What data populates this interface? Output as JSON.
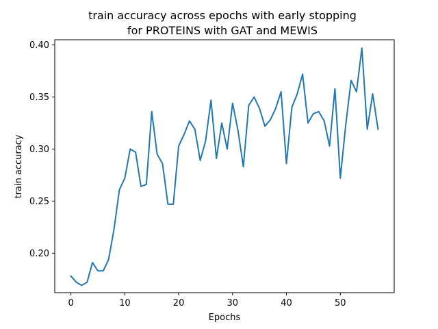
{
  "chart_data": {
    "type": "line",
    "title_lines": [
      "train accuracy across epochs with early stopping",
      "for PROTEINS with GAT and MEWIS"
    ],
    "xlabel": "Epochs",
    "ylabel": "train accuracy",
    "xlim": [
      -3,
      60
    ],
    "ylim": [
      0.162,
      0.405
    ],
    "x_ticks": [
      0,
      10,
      20,
      30,
      40,
      50
    ],
    "y_ticks": [
      0.2,
      0.25,
      0.3,
      0.35,
      0.4
    ],
    "y_tick_labels": [
      "0.20",
      "0.25",
      "0.30",
      "0.35",
      "0.40"
    ],
    "grid": false,
    "line_color": "#1f77b4",
    "series": [
      {
        "x": [
          0,
          1,
          2,
          3,
          4,
          5,
          6,
          7,
          8,
          9,
          10,
          11,
          12,
          13,
          14,
          15,
          16,
          17,
          18,
          19,
          20,
          21,
          22,
          23,
          24,
          25,
          26,
          27,
          28,
          29,
          30,
          31,
          32,
          33,
          34,
          35,
          36,
          37,
          38,
          39,
          40,
          41,
          42,
          43,
          44,
          45,
          46,
          47,
          48,
          49,
          50,
          51,
          52,
          53,
          54,
          55,
          56,
          57
        ],
        "values": [
          0.178,
          0.172,
          0.169,
          0.172,
          0.191,
          0.183,
          0.183,
          0.194,
          0.223,
          0.261,
          0.272,
          0.3,
          0.297,
          0.264,
          0.266,
          0.336,
          0.295,
          0.286,
          0.247,
          0.247,
          0.303,
          0.314,
          0.327,
          0.319,
          0.289,
          0.308,
          0.347,
          0.291,
          0.325,
          0.3,
          0.344,
          0.318,
          0.283,
          0.342,
          0.35,
          0.339,
          0.322,
          0.328,
          0.339,
          0.355,
          0.286,
          0.34,
          0.353,
          0.372,
          0.325,
          0.334,
          0.336,
          0.327,
          0.303,
          0.358,
          0.272,
          0.323,
          0.366,
          0.355,
          0.397,
          0.319,
          0.353,
          0.319
        ]
      }
    ]
  }
}
